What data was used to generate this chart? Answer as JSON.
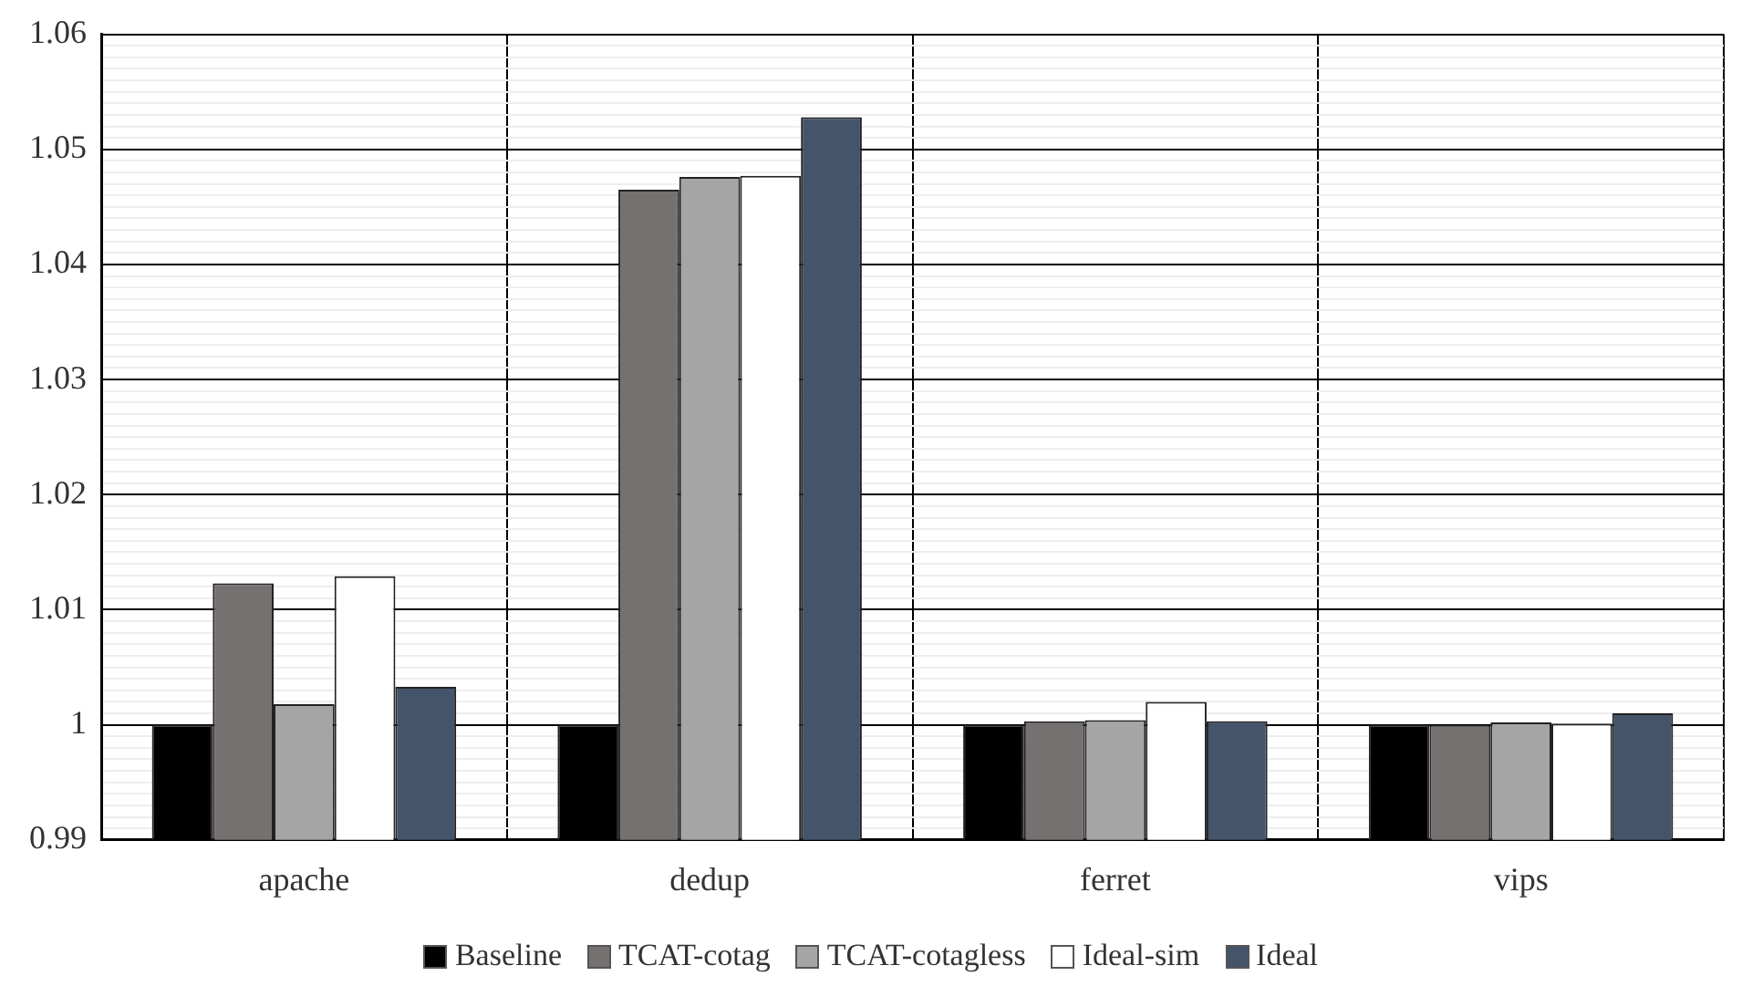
{
  "chart_data": {
    "type": "bar",
    "categories": [
      "apache",
      "dedup",
      "ferret",
      "vips"
    ],
    "series": [
      {
        "name": "Baseline",
        "color": "#000000",
        "values": [
          1.0,
          1.0,
          1.0,
          1.0
        ]
      },
      {
        "name": "TCAT-cotag",
        "color": "#767171",
        "values": [
          1.0123,
          1.0465,
          1.0003,
          1.0
        ]
      },
      {
        "name": "TCAT-cotagless",
        "color": "#a5a5a5",
        "values": [
          1.0018,
          1.0476,
          1.0004,
          1.0002
        ]
      },
      {
        "name": "Ideal-sim",
        "color": "#ffffff",
        "values": [
          1.0129,
          1.0477,
          1.002,
          1.0001
        ]
      },
      {
        "name": "Ideal",
        "color": "#44546a",
        "values": [
          1.0033,
          1.0528,
          1.0003,
          1.001
        ]
      }
    ],
    "ylim": [
      0.99,
      1.06
    ],
    "yticks": [
      {
        "value": 0.99,
        "label": "0.99"
      },
      {
        "value": 0.991,
        "label": null
      },
      {
        "value": 0.992,
        "label": null
      },
      {
        "value": 0.993,
        "label": null
      },
      {
        "value": 0.994,
        "label": null
      },
      {
        "value": 0.995,
        "label": null
      },
      {
        "value": 0.996,
        "label": null
      },
      {
        "value": 0.997,
        "label": null
      },
      {
        "value": 0.998,
        "label": null
      },
      {
        "value": 0.999,
        "label": null
      },
      1,
      {
        "value": 1.001,
        "label": null
      },
      {
        "value": 1.002,
        "label": null
      },
      {
        "value": 1.003,
        "label": null
      },
      {
        "value": 1.004,
        "label": null
      },
      {
        "value": 1.005,
        "label": null
      },
      {
        "value": 1.006,
        "label": null
      },
      {
        "value": 1.007,
        "label": null
      },
      {
        "value": 1.008,
        "label": null
      },
      {
        "value": 1.009,
        "label": null
      },
      {
        "value": 1.01,
        "label": "1.01"
      },
      {
        "value": 1.011,
        "label": null
      },
      {
        "value": 1.012,
        "label": null
      },
      {
        "value": 1.013,
        "label": null
      },
      {
        "value": 1.014,
        "label": null
      },
      {
        "value": 1.015,
        "label": null
      },
      {
        "value": 1.016,
        "label": null
      },
      {
        "value": 1.017,
        "label": null
      },
      {
        "value": 1.018,
        "label": null
      },
      {
        "value": 1.019,
        "label": null
      },
      {
        "value": 1.02,
        "label": "1.02"
      },
      {
        "value": 1.021,
        "label": null
      },
      {
        "value": 1.022,
        "label": null
      },
      {
        "value": 1.023,
        "label": null
      },
      {
        "value": 1.024,
        "label": null
      },
      {
        "value": 1.025,
        "label": null
      },
      {
        "value": 1.026,
        "label": null
      },
      {
        "value": 1.027,
        "label": null
      },
      {
        "value": 1.028,
        "label": null
      },
      {
        "value": 1.029,
        "label": null
      },
      {
        "value": 1.03,
        "label": "1.03"
      },
      {
        "value": 1.031,
        "label": null
      },
      {
        "value": 1.032,
        "label": null
      },
      {
        "value": 1.033,
        "label": null
      },
      {
        "value": 1.034,
        "label": null
      },
      {
        "value": 1.035,
        "label": null
      },
      {
        "value": 1.036,
        "label": null
      },
      {
        "value": 1.037,
        "label": null
      },
      {
        "value": 1.038,
        "label": null
      },
      {
        "value": 1.039,
        "label": null
      },
      {
        "value": 1.04,
        "label": "1.04"
      },
      {
        "value": 1.041,
        "label": null
      },
      {
        "value": 1.042,
        "label": null
      },
      {
        "value": 1.043,
        "label": null
      },
      {
        "value": 1.044,
        "label": null
      },
      {
        "value": 1.045,
        "label": null
      },
      {
        "value": 1.046,
        "label": null
      },
      {
        "value": 1.047,
        "label": null
      },
      {
        "value": 1.048,
        "label": null
      },
      {
        "value": 1.049,
        "label": null
      },
      {
        "value": 1.05,
        "label": "1.05"
      },
      {
        "value": 1.051,
        "label": null
      },
      {
        "value": 1.052,
        "label": null
      },
      {
        "value": 1.053,
        "label": null
      },
      {
        "value": 1.054,
        "label": null
      },
      {
        "value": 1.055,
        "label": null
      },
      {
        "value": 1.056,
        "label": null
      },
      {
        "value": 1.057,
        "label": null
      },
      {
        "value": 1.058,
        "label": null
      },
      {
        "value": 1.059,
        "label": null
      },
      {
        "value": 1.06,
        "label": "1.06"
      }
    ],
    "grid": true,
    "legend": "bottom"
  }
}
